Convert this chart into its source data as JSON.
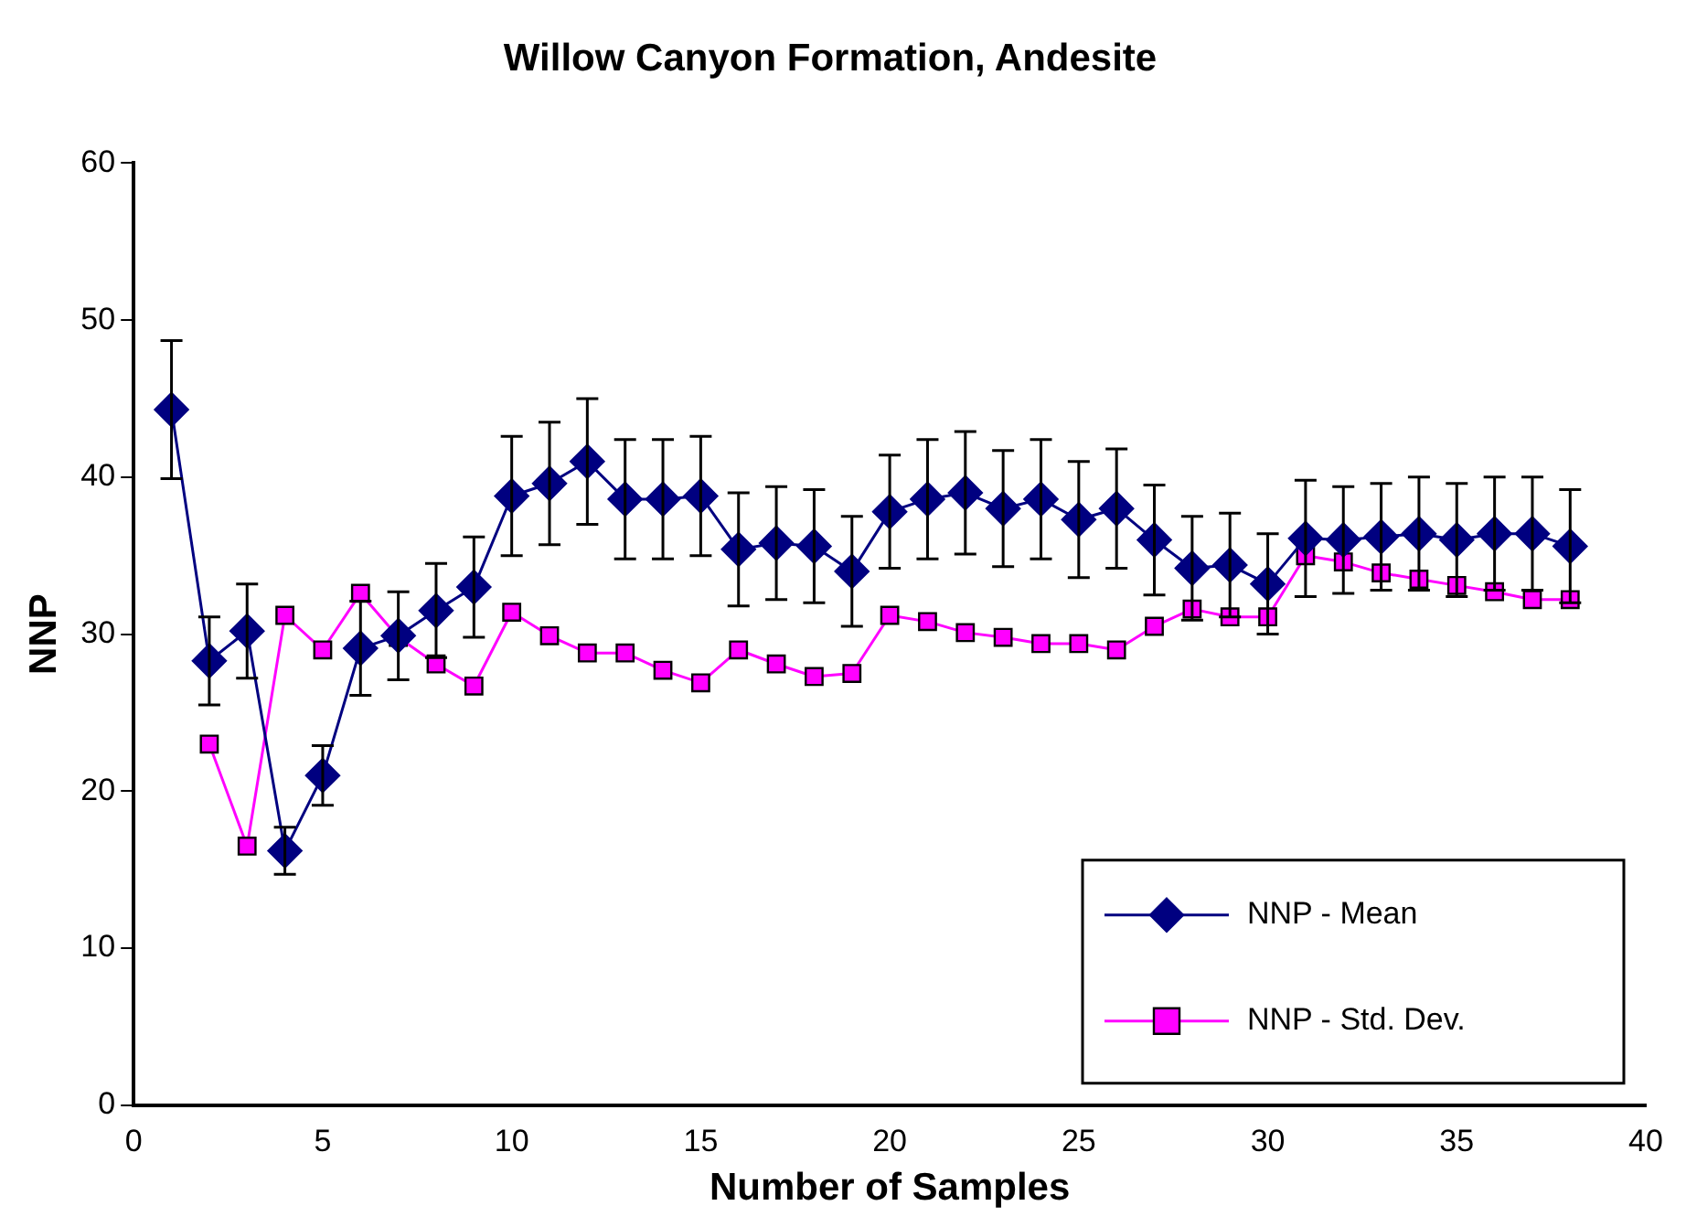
{
  "chart_data": {
    "type": "line",
    "title": "Willow Canyon Formation, Andesite",
    "xlabel": "Number of Samples",
    "ylabel": "NNP",
    "x": [
      1,
      2,
      3,
      4,
      5,
      6,
      7,
      8,
      9,
      10,
      11,
      12,
      13,
      14,
      15,
      16,
      17,
      18,
      19,
      20,
      21,
      22,
      23,
      24,
      25,
      26,
      27,
      28,
      29,
      30,
      31,
      32,
      33,
      34,
      35,
      36,
      37,
      38
    ],
    "series": [
      {
        "name": "NNP - Mean",
        "color": "#000080",
        "marker": "diamond",
        "values": [
          44.3,
          28.3,
          30.2,
          16.2,
          21,
          29.1,
          29.9,
          31.5,
          33,
          38.8,
          39.6,
          41,
          38.6,
          38.6,
          38.8,
          35.4,
          35.8,
          35.6,
          34,
          37.8,
          38.6,
          39,
          38,
          38.6,
          37.3,
          38,
          36,
          34.2,
          34.4,
          33.2,
          36.1,
          36,
          36.2,
          36.4,
          36,
          36.4,
          36.4,
          35.6
        ],
        "errors": [
          4.4,
          2.8,
          3,
          1.5,
          1.9,
          3,
          2.8,
          3,
          3.2,
          3.8,
          3.9,
          4,
          3.8,
          3.8,
          3.8,
          3.6,
          3.6,
          3.6,
          3.5,
          3.6,
          3.8,
          3.9,
          3.7,
          3.8,
          3.7,
          3.8,
          3.5,
          3.3,
          3.3,
          3.2,
          3.7,
          3.4,
          3.4,
          3.6,
          3.6,
          3.6,
          3.6,
          3.6
        ]
      },
      {
        "name": "NNP - Std. Dev.",
        "color": "#ff00ff",
        "marker": "square",
        "values": [
          null,
          23,
          16.5,
          31.2,
          29,
          32.6,
          29.8,
          28.1,
          26.7,
          31.4,
          29.9,
          28.8,
          28.8,
          27.7,
          26.9,
          29,
          28.1,
          27.3,
          27.5,
          31.2,
          30.8,
          30.1,
          29.8,
          29.4,
          29.4,
          29,
          30.5,
          31.6,
          31.1,
          31.1,
          35,
          34.6,
          33.9,
          33.5,
          33.1,
          32.7,
          32.2,
          32.2
        ]
      }
    ],
    "xlim": [
      0,
      40
    ],
    "xticks": [
      0,
      5,
      10,
      15,
      20,
      25,
      30,
      35,
      40
    ],
    "ylim": [
      0,
      60
    ],
    "yticks": [
      0,
      10,
      20,
      30,
      40,
      50,
      60
    ],
    "grid": false,
    "legend": "bottom right",
    "line_style": "solid"
  }
}
